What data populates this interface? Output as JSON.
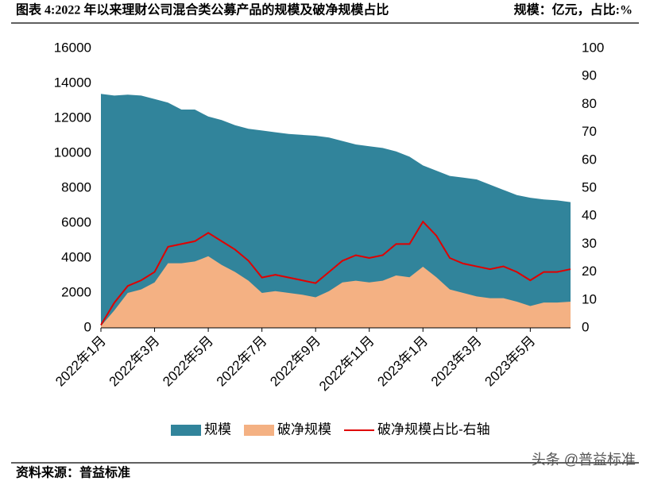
{
  "chart_data": {
    "type": "area",
    "title": "图表 4:2022 年以来理财公司混合类公募产品的规模及破净规模占比",
    "units": "规模：亿元，占比:%",
    "categories": [
      "2022年1月",
      null,
      null,
      null,
      "2022年3月",
      null,
      null,
      null,
      "2022年5月",
      null,
      null,
      null,
      "2022年7月",
      null,
      null,
      null,
      "2022年9月",
      null,
      null,
      null,
      "2022年11月",
      null,
      null,
      null,
      "2023年1月",
      null,
      null,
      null,
      "2023年3月",
      null,
      null,
      null,
      "2023年5月",
      null,
      null,
      null
    ],
    "series": [
      {
        "name": "规模",
        "kind": "area",
        "axis": "y",
        "color": "#31849b",
        "values": [
          13400,
          13300,
          13350,
          13300,
          13100,
          12900,
          12500,
          12500,
          12100,
          11900,
          11600,
          11400,
          11300,
          11200,
          11100,
          11050,
          11000,
          10900,
          10700,
          10500,
          10400,
          10300,
          10100,
          9800,
          9300,
          9000,
          8700,
          8600,
          8500,
          8200,
          7900,
          7600,
          7450,
          7350,
          7300,
          7200
        ]
      },
      {
        "name": "破净规模",
        "kind": "area",
        "axis": "y",
        "color": "#f4b183",
        "values": [
          100,
          1000,
          2000,
          2200,
          2600,
          3700,
          3700,
          3800,
          4100,
          3600,
          3200,
          2700,
          2000,
          2100,
          2000,
          1900,
          1750,
          2100,
          2600,
          2700,
          2600,
          2700,
          3000,
          2900,
          3500,
          2900,
          2200,
          2000,
          1800,
          1700,
          1700,
          1500,
          1250,
          1450,
          1450,
          1500
        ]
      },
      {
        "name": "破净规模占比-右轴",
        "kind": "line",
        "axis": "y2",
        "color": "#e00000",
        "values": [
          1,
          9,
          15,
          17,
          20,
          29,
          30,
          31,
          34,
          31,
          28,
          24,
          18,
          19,
          18,
          17,
          16,
          20,
          24,
          26,
          25,
          26,
          30,
          30,
          38,
          33,
          25,
          23,
          22,
          21,
          22,
          20,
          17,
          20,
          20,
          21
        ]
      }
    ],
    "ylim": [
      0,
      16000
    ],
    "yticks": [
      0,
      2000,
      4000,
      6000,
      8000,
      10000,
      12000,
      14000,
      16000
    ],
    "y2lim": [
      0,
      100
    ],
    "y2ticks": [
      0,
      10,
      20,
      30,
      40,
      50,
      60,
      70,
      80,
      90,
      100
    ],
    "legend": "bottom",
    "source": "资料来源：普益标准",
    "watermark": "头条 @普益标准"
  }
}
